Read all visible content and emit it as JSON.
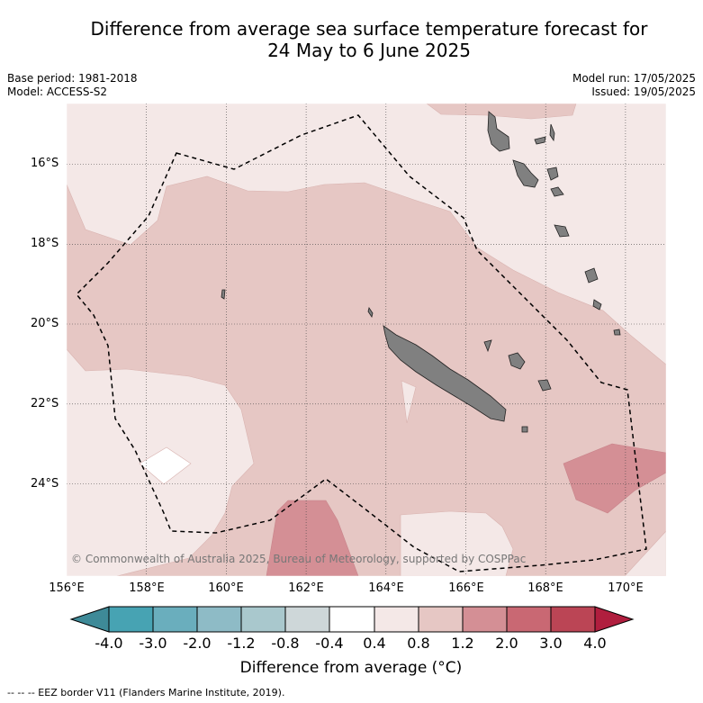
{
  "header": {
    "title_line1": "Difference from average sea surface temperature forecast for",
    "title_line2": "24 May to 6 June 2025"
  },
  "meta": {
    "base_period": "Base period: 1981-2018",
    "model": "Model: ACCESS-S2",
    "model_run": "Model run: 17/05/2025",
    "issued": "Issued: 19/05/2025"
  },
  "map": {
    "copyright": "© Commonwealth of Australia 2025, Bureau of Meteorology, supported by COSPPac",
    "lat_labels": [
      "16°S",
      "18°S",
      "20°S",
      "22°S",
      "24°S"
    ],
    "lon_labels": [
      "156°E",
      "158°E",
      "160°E",
      "162°E",
      "164°E",
      "166°E",
      "168°E",
      "170°E"
    ],
    "colors": {
      "land": "#808080",
      "ocean_04_08": "#f4e8e7",
      "ocean_08_12": "#e6c7c4",
      "ocean_12_20": "#d48f95",
      "ocean_neutral": "#ffffff"
    }
  },
  "colorbar": {
    "ticks": [
      "-4.0",
      "-3.0",
      "-2.0",
      "-1.2",
      "-0.8",
      "-0.4",
      "0.4",
      "0.8",
      "1.2",
      "2.0",
      "3.0",
      "4.0"
    ],
    "colors": [
      "#3e8a98",
      "#47a3b3",
      "#6aaebd",
      "#8ebbc6",
      "#a9c8cd",
      "#ced7d9",
      "#ffffff",
      "#f4e8e7",
      "#e6c7c4",
      "#d48f95",
      "#c96873",
      "#bb4555",
      "#b01e3e"
    ],
    "label": "Difference from average (°C)"
  },
  "footnote": "--  --  -- EEZ border V11 (Flanders Marine Institute, 2019)."
}
